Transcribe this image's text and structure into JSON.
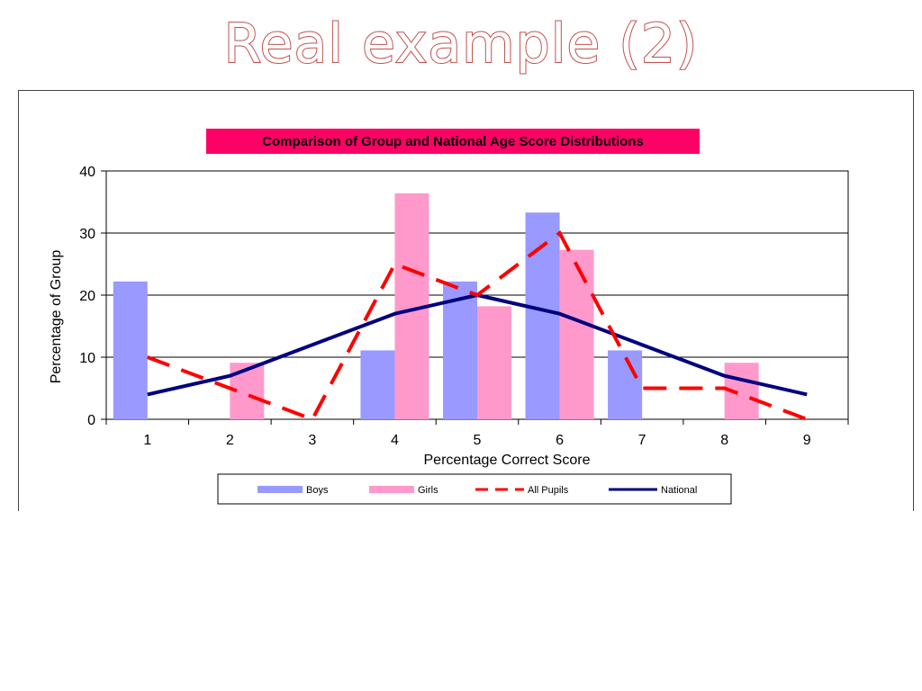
{
  "slide": {
    "title": "Real example (2)"
  },
  "colors": {
    "title_outline": "#c0504d",
    "title_banner": "#ff0066",
    "boys": "#9999ff",
    "girls": "#ff99cc",
    "all_pupils": "#ff0000",
    "national": "#000080"
  },
  "chart_data": {
    "type": "bar",
    "title": "Comparison of Group and National Age Score Distributions",
    "xlabel": "Percentage Correct Score",
    "ylabel": "Percentage of Group",
    "categories": [
      "1",
      "2",
      "3",
      "4",
      "5",
      "6",
      "7",
      "8",
      "9"
    ],
    "ylim": [
      0,
      40
    ],
    "yticks": [
      0,
      10,
      20,
      30,
      40
    ],
    "grid": true,
    "legend_position": "bottom",
    "series": [
      {
        "name": "Boys",
        "type": "bar",
        "values": [
          22.2,
          0,
          0,
          11.1,
          22.2,
          33.3,
          11.1,
          0,
          0
        ]
      },
      {
        "name": "Girls",
        "type": "bar",
        "values": [
          0,
          9.1,
          0,
          36.4,
          18.2,
          27.3,
          0,
          9.1,
          0
        ]
      },
      {
        "name": "All Pupils",
        "type": "line",
        "style": "dashed",
        "values": [
          10,
          5,
          0,
          25,
          20,
          30,
          5,
          5,
          0
        ]
      },
      {
        "name": "National",
        "type": "line",
        "style": "solid",
        "values": [
          4,
          7,
          12,
          17,
          20,
          17,
          12,
          7,
          4
        ]
      }
    ]
  }
}
